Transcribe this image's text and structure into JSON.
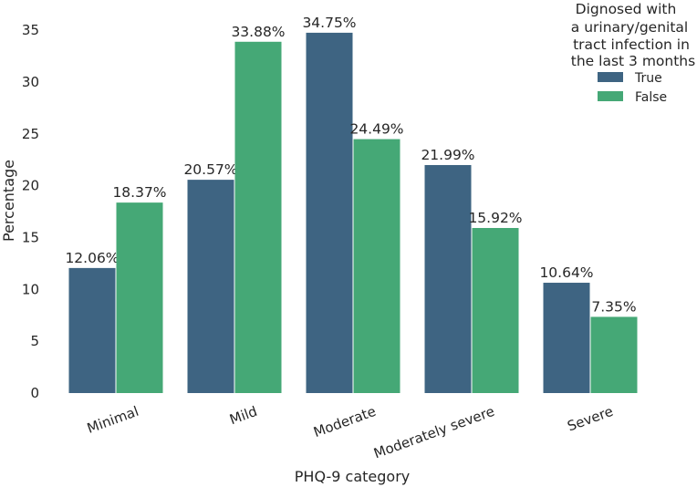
{
  "chart_data": {
    "type": "bar",
    "categories": [
      "Minimal",
      "Mild",
      "Moderate",
      "Moderately severe",
      "Severe"
    ],
    "series": [
      {
        "name": "True",
        "values": [
          12.06,
          20.57,
          34.75,
          21.99,
          10.64
        ],
        "labels": [
          "12.06%",
          "20.57%",
          "34.75%",
          "21.99%",
          "10.64%"
        ],
        "color": "#3e6482"
      },
      {
        "name": "False",
        "values": [
          18.37,
          33.88,
          24.49,
          15.92,
          7.35
        ],
        "labels": [
          "18.37%",
          "33.88%",
          "24.49%",
          "15.92%",
          "7.35%"
        ],
        "color": "#45a876"
      }
    ],
    "xlabel": "PHQ-9 category",
    "ylabel": "Percentage",
    "ylim": [
      0,
      36.5
    ],
    "yticks": [
      0,
      5,
      10,
      15,
      20,
      25,
      30,
      35
    ],
    "grid": false,
    "legend": {
      "title_lines": [
        "Dignosed with",
        "a urinary/genital",
        "tract infection in",
        "the last 3 months"
      ],
      "placement": "top-right"
    }
  }
}
